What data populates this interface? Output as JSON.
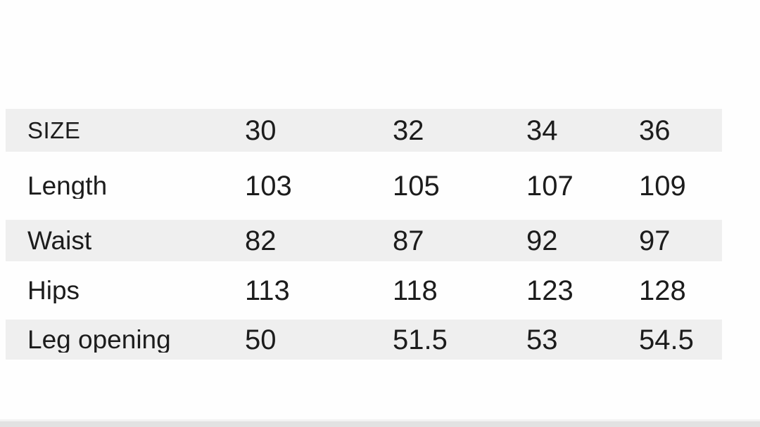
{
  "colors": {
    "page_background": "#fefefe",
    "row_stripe": "#efefef",
    "text": "#1c1c1c",
    "bottom_bar": "#e2e2e2",
    "bottom_bar_edge": "#f3f3f3"
  },
  "chart_data": {
    "type": "table",
    "columns": [
      "SIZE",
      "30",
      "32",
      "34",
      "36"
    ],
    "rows": [
      {
        "label": "Length",
        "values": [
          "103",
          "105",
          "107",
          "109"
        ]
      },
      {
        "label": "Waist",
        "values": [
          "82",
          "87",
          "92",
          "97"
        ]
      },
      {
        "label": "Hips",
        "values": [
          "113",
          "118",
          "123",
          "128"
        ]
      },
      {
        "label": "Leg opening",
        "values": [
          "50",
          "51.5",
          "53",
          "54.5"
        ]
      }
    ],
    "layout": {
      "striped_rows": true,
      "stripe_rows": [
        "SIZE",
        "Waist",
        "Leg opening"
      ],
      "grid": false
    }
  }
}
